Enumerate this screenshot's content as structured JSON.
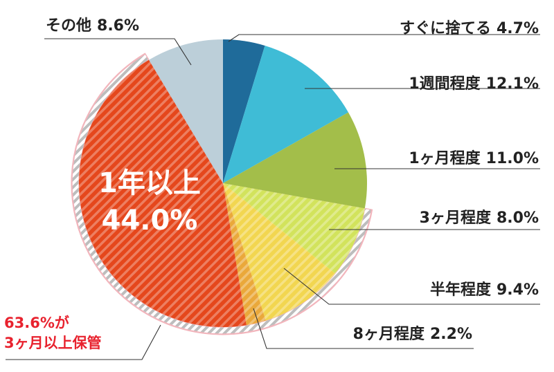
{
  "chart_data": {
    "type": "pie",
    "start": "top",
    "direction": "clockwise",
    "slices": [
      {
        "label": "すぐに捨てる",
        "value": 4.7,
        "display": "4.7%",
        "color": "#1f6b9a"
      },
      {
        "label": "1週間程度",
        "value": 12.1,
        "display": "12.1%",
        "color": "#3fbcd6"
      },
      {
        "label": "1ヶ月程度",
        "value": 11.0,
        "display": "11.0%",
        "color": "#a3be4a"
      },
      {
        "label": "3ヶ月程度",
        "value": 8.0,
        "display": "8.0%",
        "color": "#d2e35c"
      },
      {
        "label": "半年程度",
        "value": 9.4,
        "display": "9.4%",
        "color": "#f2d650"
      },
      {
        "label": "8ヶ月程度",
        "value": 2.2,
        "display": "2.2%",
        "color": "#eaa83a"
      },
      {
        "label": "1年以上",
        "value": 44.0,
        "display": "44.0%",
        "color": "#e5471c"
      },
      {
        "label": "その他",
        "value": 8.6,
        "display": "8.6%",
        "color": "#bccfd9"
      }
    ],
    "highlight": {
      "slices": [
        "3ヶ月程度",
        "半年程度",
        "8ヶ月程度",
        "1年以上"
      ],
      "total": "63.6%",
      "text_line1": "63.6%が",
      "text_line2": "3ヶ月以上保管"
    }
  }
}
